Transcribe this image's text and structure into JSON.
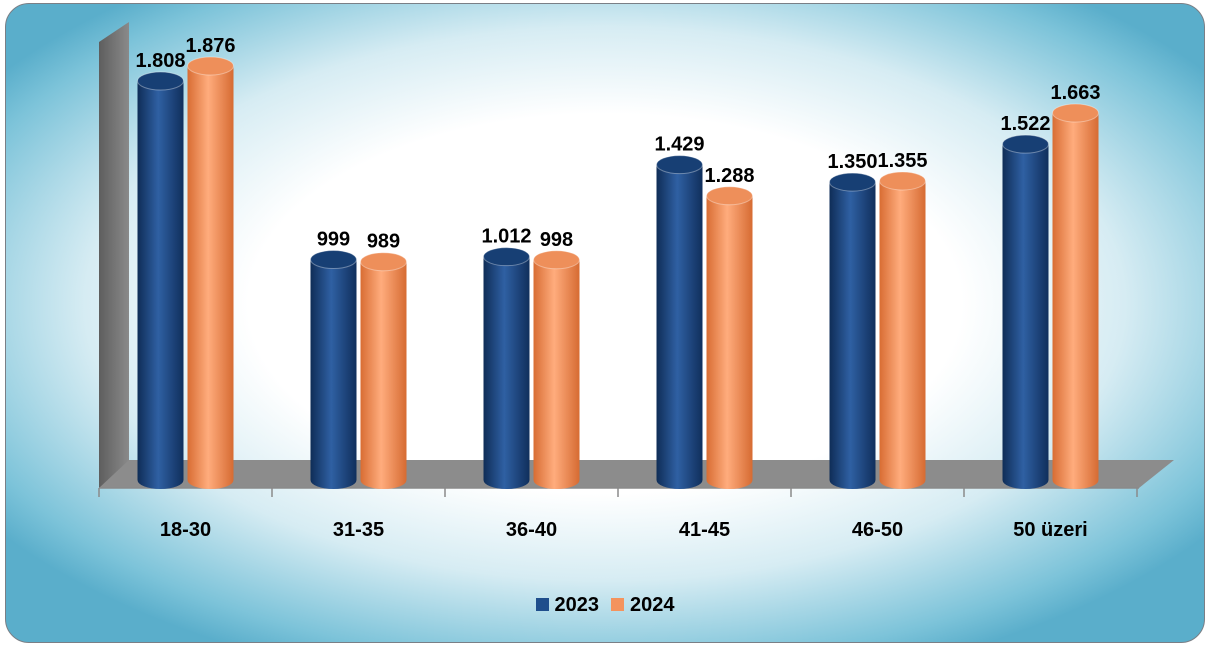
{
  "chart_data": {
    "type": "bar",
    "categories": [
      "18-30",
      "31-35",
      "36-40",
      "41-45",
      "46-50",
      "50 üzeri"
    ],
    "series": [
      {
        "name": "2023",
        "values": [
          1808,
          999,
          1012,
          1429,
          1350,
          1522
        ],
        "labels": [
          "1.808",
          "999",
          "1.012",
          "1.429",
          "1.350",
          "1.522"
        ],
        "color": "#1f4e8c"
      },
      {
        "name": "2024",
        "values": [
          1876,
          989,
          998,
          1288,
          1355,
          1663
        ],
        "labels": [
          "1.876",
          "989",
          "998",
          "1.288",
          "1.355",
          "1.663"
        ],
        "color": "#f4935d"
      }
    ],
    "title": "",
    "xlabel": "",
    "ylabel": "",
    "ylim": [
      0,
      2000
    ],
    "grid": false,
    "legend_position": "bottom"
  }
}
